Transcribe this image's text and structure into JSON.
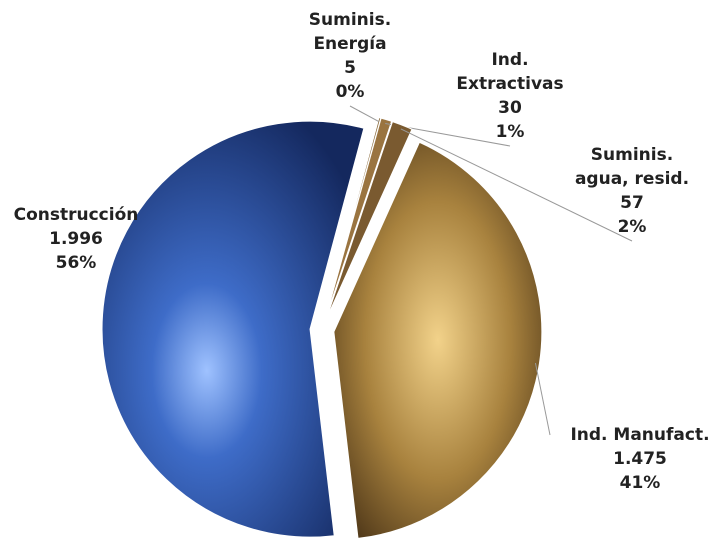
{
  "chart_data": {
    "type": "pie",
    "categories": [
      [
        "Suminis.",
        "Energía"
      ],
      [
        "Ind.",
        "Extractivas"
      ],
      [
        "Suminis.",
        "agua, resid."
      ],
      [
        "Ind. Manufact."
      ],
      [
        "Construcción"
      ]
    ],
    "values": [
      5,
      30,
      57,
      1475,
      1996
    ],
    "value_labels": [
      "5",
      "30",
      "57",
      "1.475",
      "1.996"
    ],
    "percent_labels": [
      "0%",
      "1%",
      "2%",
      "41%",
      "56%"
    ],
    "colors": [
      "#8a6a3a",
      "#9a7440",
      "#7a5a30",
      "#a8823e",
      "#2c54a8"
    ]
  }
}
